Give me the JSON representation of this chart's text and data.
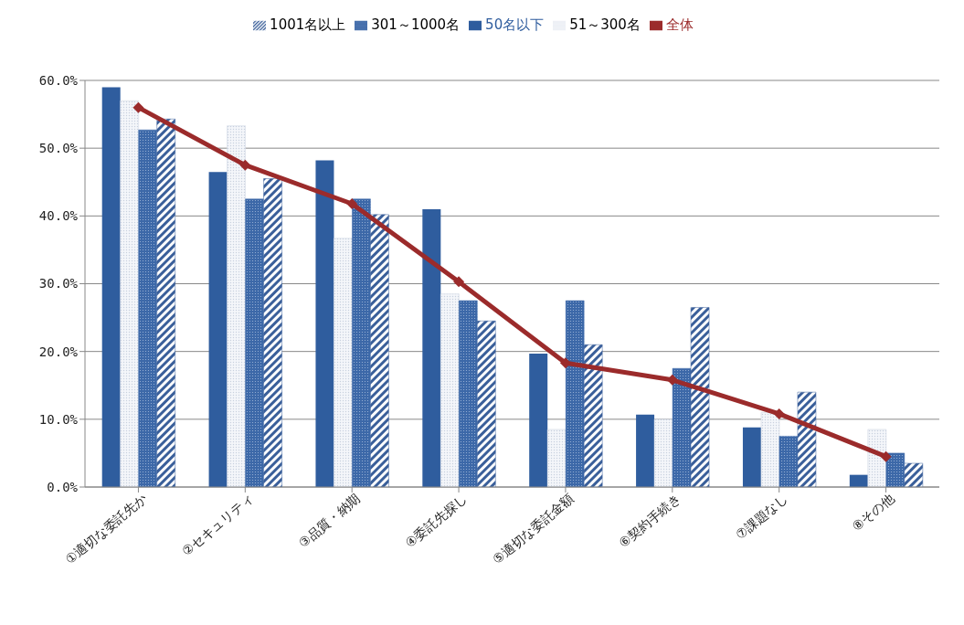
{
  "chart_data": {
    "type": "bar",
    "categories": [
      "①適切な委託先か",
      "②セキュリティ",
      "③品質・納期",
      "④委託先探し",
      "⑤適切な委託金額",
      "⑥契約手続き",
      "⑦課題なし",
      "⑧その他"
    ],
    "series": [
      {
        "name": "50名以下",
        "color": "#2f5d9e",
        "values": [
          59,
          46.5,
          48.2,
          41,
          19.7,
          10.7,
          8.8,
          1.8
        ]
      },
      {
        "name": "51～300名",
        "color": "#c8d0de",
        "values": [
          57,
          53.3,
          36.7,
          28.5,
          8.5,
          10,
          11,
          8.5
        ]
      },
      {
        "name": "301～1000名",
        "color": "#3c68a8",
        "values": [
          52.7,
          42.5,
          42.5,
          27.5,
          27.5,
          17.5,
          7.5,
          5
        ]
      },
      {
        "name": "1001名以上",
        "color": "#3a5f9a",
        "values": [
          54.3,
          45.5,
          40.2,
          24.5,
          21,
          26.5,
          14,
          3.5
        ]
      },
      {
        "name": "全体",
        "type": "line",
        "color": "#9b2b2b",
        "marker": "diamond",
        "values": [
          56,
          47.5,
          41.8,
          30.3,
          18.3,
          15.8,
          10.8,
          4.5
        ]
      }
    ],
    "ylim": [
      0,
      60
    ],
    "yticks": [
      {
        "value": 0,
        "label": "0.0%"
      },
      {
        "value": 10,
        "label": "10.0%"
      },
      {
        "value": 20,
        "label": "20.0%"
      },
      {
        "value": 30,
        "label": "30.0%"
      },
      {
        "value": 40,
        "label": "40.0%"
      },
      {
        "value": 50,
        "label": "50.0%"
      },
      {
        "value": 60,
        "label": "60.0%"
      }
    ],
    "grid": "y",
    "legend": "top"
  }
}
